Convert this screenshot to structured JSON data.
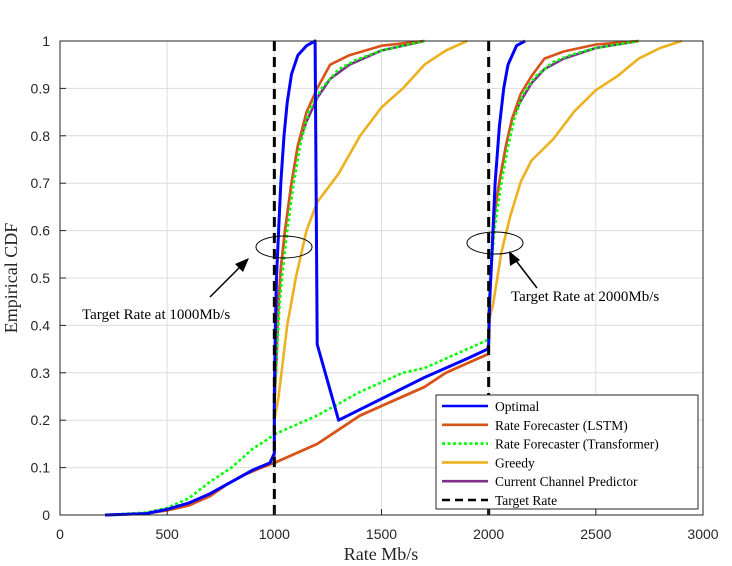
{
  "chart_data": {
    "type": "line",
    "title": "",
    "xlabel": "Rate Mb/s",
    "ylabel": "Empirical CDF",
    "xlim": [
      0,
      3000
    ],
    "ylim": [
      0,
      1
    ],
    "xticks": [
      0,
      500,
      1000,
      1500,
      2000,
      2500,
      3000
    ],
    "xtick_labels": [
      "0",
      "500",
      "1000",
      "1500",
      "2000",
      "2500",
      "3000"
    ],
    "yticks": [
      0,
      0.1,
      0.2,
      0.3,
      0.4,
      0.5,
      0.6,
      0.7,
      0.8,
      0.9,
      1
    ],
    "ytick_labels": [
      "0",
      "0.1",
      "0.2",
      "0.3",
      "0.4",
      "0.5",
      "0.6",
      "0.7",
      "0.8",
      "0.9",
      "1"
    ],
    "grid": true,
    "legend_position": "bottom-right",
    "series": [
      {
        "name": "Optimal",
        "color": "#0000ff",
        "dash": "solid",
        "points": [
          [
            210,
            0
          ],
          [
            400,
            0.003
          ],
          [
            500,
            0.012
          ],
          [
            600,
            0.025
          ],
          [
            700,
            0.045
          ],
          [
            800,
            0.07
          ],
          [
            900,
            0.095
          ],
          [
            980,
            0.11
          ],
          [
            1000,
            0.13
          ],
          [
            1000,
            0.25
          ],
          [
            1005,
            0.4
          ],
          [
            1010,
            0.5
          ],
          [
            1020,
            0.6
          ],
          [
            1030,
            0.7
          ],
          [
            1045,
            0.8
          ],
          [
            1060,
            0.87
          ],
          [
            1080,
            0.93
          ],
          [
            1110,
            0.97
          ],
          [
            1150,
            0.99
          ],
          [
            1190,
            1.0
          ],
          [
            1200,
            0.36
          ],
          [
            1300,
            0.2
          ],
          [
            1700,
            0.29
          ],
          [
            1900,
            0.33
          ],
          [
            1995,
            0.35
          ],
          [
            2000,
            0.36
          ],
          [
            2005,
            0.45
          ],
          [
            2015,
            0.55
          ],
          [
            2030,
            0.7
          ],
          [
            2050,
            0.82
          ],
          [
            2070,
            0.9
          ],
          [
            2090,
            0.95
          ],
          [
            2130,
            0.99
          ],
          [
            2170,
            1.0
          ]
        ]
      },
      {
        "name": "Rate Forecaster (LSTM)",
        "color": "#d95319",
        "dash": "solid",
        "points": [
          [
            210,
            0
          ],
          [
            400,
            0.003
          ],
          [
            500,
            0.01
          ],
          [
            600,
            0.02
          ],
          [
            700,
            0.04
          ],
          [
            780,
            0.065
          ],
          [
            860,
            0.085
          ],
          [
            940,
            0.1
          ],
          [
            1000,
            0.11
          ],
          [
            1000,
            0.23
          ],
          [
            1010,
            0.33
          ],
          [
            1020,
            0.45
          ],
          [
            1030,
            0.52
          ],
          [
            1050,
            0.6
          ],
          [
            1080,
            0.7
          ],
          [
            1110,
            0.78
          ],
          [
            1150,
            0.85
          ],
          [
            1200,
            0.9
          ],
          [
            1260,
            0.95
          ],
          [
            1350,
            0.97
          ],
          [
            1500,
            0.99
          ],
          [
            1700,
            1.0
          ]
        ]
      },
      {
        "name": "Rate Forecaster (Transformer)",
        "color": "#00ff00",
        "dash": "dotted",
        "points": [
          [
            210,
            0
          ],
          [
            400,
            0.005
          ],
          [
            500,
            0.015
          ],
          [
            600,
            0.035
          ],
          [
            700,
            0.07
          ],
          [
            800,
            0.1
          ],
          [
            900,
            0.14
          ],
          [
            970,
            0.16
          ],
          [
            1000,
            0.17
          ],
          [
            1000,
            0.24
          ],
          [
            1010,
            0.33
          ],
          [
            1025,
            0.45
          ],
          [
            1040,
            0.52
          ],
          [
            1060,
            0.6
          ],
          [
            1090,
            0.7
          ],
          [
            1120,
            0.78
          ],
          [
            1160,
            0.85
          ],
          [
            1220,
            0.9
          ],
          [
            1300,
            0.94
          ],
          [
            1380,
            0.96
          ],
          [
            1500,
            0.98
          ],
          [
            1700,
            1.0
          ]
        ]
      },
      {
        "name": "Greedy",
        "color": "#edb120",
        "dash": "solid",
        "points": [
          [
            210,
            0
          ],
          [
            400,
            0.003
          ],
          [
            500,
            0.01
          ],
          [
            600,
            0.02
          ],
          [
            700,
            0.04
          ],
          [
            780,
            0.065
          ],
          [
            860,
            0.085
          ],
          [
            940,
            0.1
          ],
          [
            1000,
            0.11
          ],
          [
            1000,
            0.2
          ],
          [
            1020,
            0.25
          ],
          [
            1060,
            0.4
          ],
          [
            1100,
            0.5
          ],
          [
            1150,
            0.6
          ],
          [
            1200,
            0.66
          ],
          [
            1300,
            0.72
          ],
          [
            1400,
            0.8
          ],
          [
            1500,
            0.86
          ],
          [
            1600,
            0.9
          ],
          [
            1700,
            0.95
          ],
          [
            1800,
            0.98
          ],
          [
            1900,
            1.0
          ]
        ]
      },
      {
        "name": "Current Channel Predictor",
        "color": "#7e2f8e",
        "dash": "solid",
        "points": [
          [
            210,
            0
          ],
          [
            400,
            0.003
          ],
          [
            500,
            0.01
          ],
          [
            600,
            0.02
          ],
          [
            700,
            0.04
          ],
          [
            780,
            0.065
          ],
          [
            860,
            0.085
          ],
          [
            940,
            0.1
          ],
          [
            1000,
            0.11
          ],
          [
            1000,
            0.23
          ],
          [
            1010,
            0.33
          ],
          [
            1020,
            0.45
          ],
          [
            1030,
            0.52
          ],
          [
            1050,
            0.6
          ],
          [
            1080,
            0.7
          ],
          [
            1110,
            0.78
          ],
          [
            1150,
            0.83
          ],
          [
            1200,
            0.88
          ],
          [
            1260,
            0.92
          ],
          [
            1350,
            0.95
          ],
          [
            1500,
            0.98
          ],
          [
            1700,
            1.0
          ]
        ]
      },
      {
        "name": "Target Rate",
        "color": "#000000",
        "dash": "dashed",
        "points": [
          [
            1000,
            0
          ],
          [
            1000,
            1
          ]
        ]
      }
    ],
    "annotations": [
      {
        "text": "Target Rate at 1000Mb/s"
      },
      {
        "text": "Target Rate at 2000Mb/s"
      }
    ]
  }
}
